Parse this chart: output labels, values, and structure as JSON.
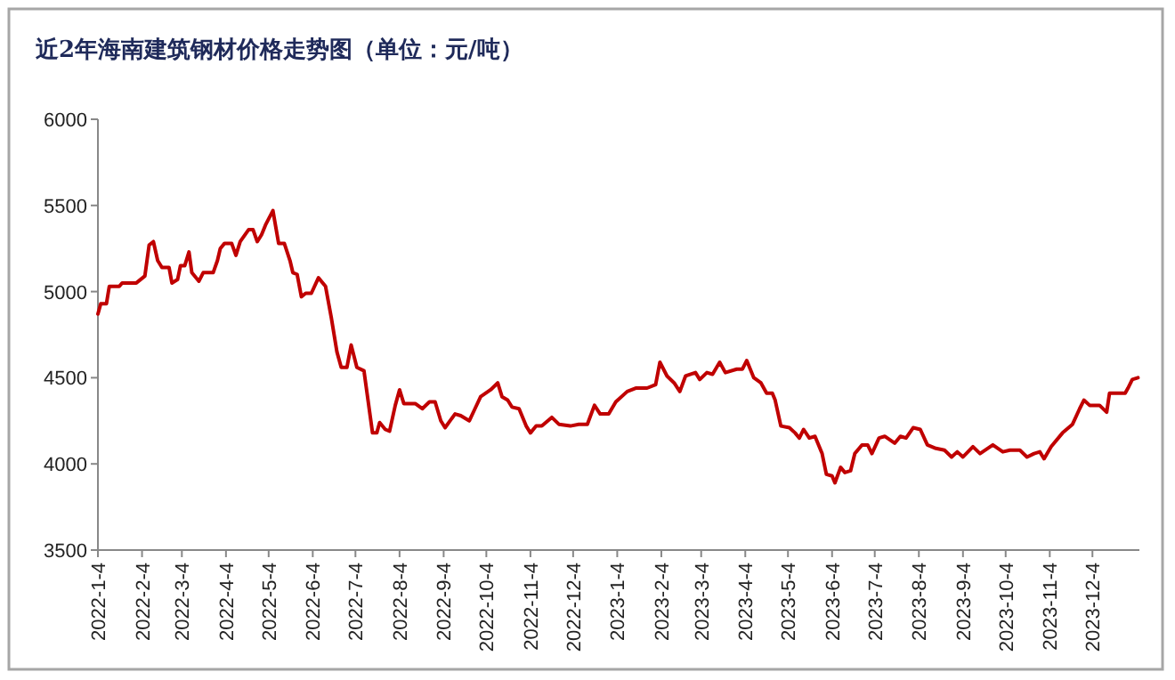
{
  "chart_data": {
    "type": "line",
    "title": "近2年海南建筑钢材价格走势图（单位：元/吨）",
    "color": "#c00000",
    "xlim": [
      "2022-01-04",
      "2024-01-06"
    ],
    "ylim": [
      3500,
      6000
    ],
    "yticks": [
      3500,
      4000,
      4500,
      5000,
      5500,
      6000
    ],
    "xticks": [
      {
        "value": "2022-01-04",
        "label": "2022-1-4"
      },
      {
        "value": "2022-02-04",
        "label": "2022-2-4"
      },
      {
        "value": "2022-03-04",
        "label": "2022-3-4"
      },
      {
        "value": "2022-04-04",
        "label": "2022-4-4"
      },
      {
        "value": "2022-05-04",
        "label": "2022-5-4"
      },
      {
        "value": "2022-06-04",
        "label": "2022-6-4"
      },
      {
        "value": "2022-07-04",
        "label": "2022-7-4"
      },
      {
        "value": "2022-08-04",
        "label": "2022-8-4"
      },
      {
        "value": "2022-09-04",
        "label": "2022-9-4"
      },
      {
        "value": "2022-10-04",
        "label": "2022-10-4"
      },
      {
        "value": "2022-11-04",
        "label": "2022-11-4"
      },
      {
        "value": "2022-12-04",
        "label": "2022-12-4"
      },
      {
        "value": "2023-01-04",
        "label": "2023-1-4"
      },
      {
        "value": "2023-02-04",
        "label": "2023-2-4"
      },
      {
        "value": "2023-03-04",
        "label": "2023-3-4"
      },
      {
        "value": "2023-04-04",
        "label": "2023-4-4"
      },
      {
        "value": "2023-05-04",
        "label": "2023-5-4"
      },
      {
        "value": "2023-06-04",
        "label": "2023-6-4"
      },
      {
        "value": "2023-07-04",
        "label": "2023-7-4"
      },
      {
        "value": "2023-08-04",
        "label": "2023-8-4"
      },
      {
        "value": "2023-09-04",
        "label": "2023-9-4"
      },
      {
        "value": "2023-10-04",
        "label": "2023-10-4"
      },
      {
        "value": "2023-11-04",
        "label": "2023-11-4"
      },
      {
        "value": "2023-12-04",
        "label": "2023-12-4"
      }
    ],
    "x": [
      "2022-01-04",
      "2022-01-06",
      "2022-01-10",
      "2022-01-12",
      "2022-01-19",
      "2022-01-21",
      "2022-01-31",
      "2022-02-06",
      "2022-02-09",
      "2022-02-12",
      "2022-02-15",
      "2022-02-18",
      "2022-02-23",
      "2022-02-25",
      "2022-03-01",
      "2022-03-03",
      "2022-03-06",
      "2022-03-09",
      "2022-03-11",
      "2022-03-16",
      "2022-03-19",
      "2022-03-26",
      "2022-03-29",
      "2022-03-31",
      "2022-04-03",
      "2022-04-08",
      "2022-04-11",
      "2022-04-14",
      "2022-04-20",
      "2022-04-23",
      "2022-04-26",
      "2022-04-29",
      "2022-05-02",
      "2022-05-07",
      "2022-05-11",
      "2022-05-15",
      "2022-05-19",
      "2022-05-21",
      "2022-05-24",
      "2022-05-27",
      "2022-05-30",
      "2022-06-03",
      "2022-06-08",
      "2022-06-13",
      "2022-06-17",
      "2022-06-21",
      "2022-06-24",
      "2022-06-28",
      "2022-07-01",
      "2022-07-05",
      "2022-07-10",
      "2022-07-16",
      "2022-07-19",
      "2022-07-21",
      "2022-07-25",
      "2022-07-28",
      "2022-08-01",
      "2022-08-04",
      "2022-08-07",
      "2022-08-15",
      "2022-08-20",
      "2022-08-25",
      "2022-08-29",
      "2022-09-02",
      "2022-09-05",
      "2022-09-12",
      "2022-09-16",
      "2022-09-22",
      "2022-09-26",
      "2022-09-30",
      "2022-10-07",
      "2022-10-12",
      "2022-10-15",
      "2022-10-19",
      "2022-10-22",
      "2022-10-27",
      "2022-11-01",
      "2022-11-04",
      "2022-11-08",
      "2022-11-12",
      "2022-11-19",
      "2022-11-24",
      "2022-12-02",
      "2022-12-08",
      "2022-12-14",
      "2022-12-19",
      "2022-12-23",
      "2022-12-29",
      "2023-01-03",
      "2023-01-11",
      "2023-01-17",
      "2023-01-25",
      "2023-01-31",
      "2023-02-03",
      "2023-02-08",
      "2023-02-13",
      "2023-02-17",
      "2023-02-21",
      "2023-02-28",
      "2023-03-03",
      "2023-03-08",
      "2023-03-12",
      "2023-03-17",
      "2023-03-21",
      "2023-03-29",
      "2023-04-02",
      "2023-04-05",
      "2023-04-10",
      "2023-04-15",
      "2023-04-19",
      "2023-04-23",
      "2023-04-25",
      "2023-04-29",
      "2023-05-05",
      "2023-05-09",
      "2023-05-12",
      "2023-05-15",
      "2023-05-19",
      "2023-05-23",
      "2023-05-28",
      "2023-05-31",
      "2023-06-04",
      "2023-06-06",
      "2023-06-10",
      "2023-06-13",
      "2023-06-17",
      "2023-06-20",
      "2023-06-25",
      "2023-06-29",
      "2023-07-02",
      "2023-07-07",
      "2023-07-11",
      "2023-07-18",
      "2023-07-22",
      "2023-07-26",
      "2023-07-31",
      "2023-08-05",
      "2023-08-10",
      "2023-08-16",
      "2023-08-22",
      "2023-08-27",
      "2023-08-31",
      "2023-09-04",
      "2023-09-11",
      "2023-09-16",
      "2023-09-25",
      "2023-10-02",
      "2023-10-07",
      "2023-10-14",
      "2023-10-19",
      "2023-10-24",
      "2023-10-28",
      "2023-10-31",
      "2023-11-05",
      "2023-11-13",
      "2023-11-20",
      "2023-11-25",
      "2023-11-28",
      "2023-12-02",
      "2023-12-09",
      "2023-12-14",
      "2023-12-16",
      "2023-12-27",
      "2023-12-29",
      "2024-01-01",
      "2024-01-05"
    ],
    "values": [
      4870,
      4930,
      4930,
      5030,
      5030,
      5050,
      5050,
      5090,
      5270,
      5290,
      5180,
      5140,
      5140,
      5050,
      5070,
      5150,
      5150,
      5230,
      5110,
      5060,
      5110,
      5110,
      5180,
      5250,
      5280,
      5280,
      5210,
      5290,
      5360,
      5360,
      5290,
      5330,
      5390,
      5470,
      5280,
      5280,
      5180,
      5110,
      5100,
      4970,
      4990,
      4990,
      5080,
      5030,
      4850,
      4650,
      4560,
      4560,
      4690,
      4560,
      4540,
      4180,
      4180,
      4240,
      4200,
      4190,
      4340,
      4430,
      4350,
      4350,
      4320,
      4360,
      4360,
      4250,
      4210,
      4290,
      4280,
      4250,
      4320,
      4390,
      4430,
      4470,
      4390,
      4370,
      4330,
      4320,
      4220,
      4180,
      4220,
      4220,
      4270,
      4230,
      4220,
      4230,
      4230,
      4340,
      4290,
      4290,
      4360,
      4420,
      4440,
      4440,
      4460,
      4590,
      4510,
      4470,
      4420,
      4510,
      4530,
      4490,
      4530,
      4520,
      4590,
      4530,
      4550,
      4550,
      4600,
      4500,
      4470,
      4410,
      4410,
      4370,
      4220,
      4210,
      4180,
      4150,
      4200,
      4150,
      4160,
      4060,
      3940,
      3930,
      3890,
      3980,
      3950,
      3960,
      4060,
      4110,
      4110,
      4060,
      4150,
      4160,
      4120,
      4160,
      4150,
      4210,
      4200,
      4110,
      4090,
      4080,
      4040,
      4070,
      4040,
      4100,
      4060,
      4110,
      4070,
      4080,
      4080,
      4040,
      4060,
      4070,
      4030,
      4100,
      4180,
      4230,
      4320,
      4370,
      4340,
      4340,
      4300,
      4410,
      4410,
      4440,
      4490,
      4500
    ]
  }
}
